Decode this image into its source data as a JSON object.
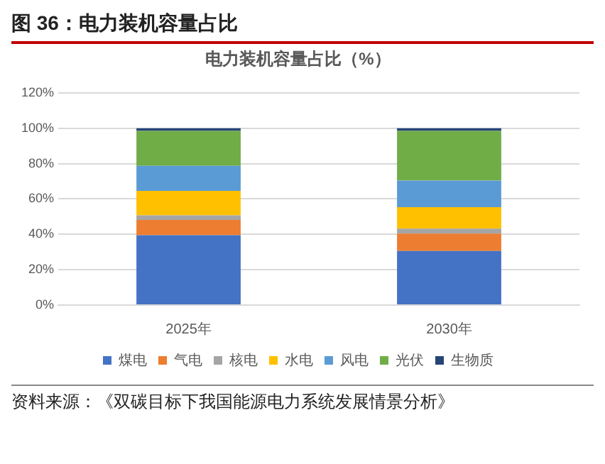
{
  "chart_data": {
    "type": "bar",
    "title": "图 36：电力装机容量占比",
    "subtitle": "电力装机容量占比（%）",
    "categories": [
      "2025年",
      "2030年"
    ],
    "stacked": true,
    "series": [
      {
        "name": "煤电",
        "color": "#4472c4",
        "values": [
          39.5,
          30.6
        ]
      },
      {
        "name": "气电",
        "color": "#ed7d31",
        "values": [
          8.6,
          9.8
        ]
      },
      {
        "name": "核电",
        "color": "#a5a5a5",
        "values": [
          2.6,
          2.8
        ]
      },
      {
        "name": "水电",
        "color": "#ffc000",
        "values": [
          13.9,
          12.1
        ]
      },
      {
        "name": "风电",
        "color": "#5b9bd5",
        "values": [
          14.1,
          15.1
        ]
      },
      {
        "name": "光伏",
        "color": "#70ad47",
        "values": [
          19.8,
          28.1
        ]
      },
      {
        "name": "生物质",
        "color": "#264478",
        "values": [
          1.5,
          1.5
        ]
      }
    ],
    "ylim": [
      0,
      120
    ],
    "yticks": [
      {
        "value": 0,
        "label": "0%"
      },
      {
        "value": 20,
        "label": "20%"
      },
      {
        "value": 40,
        "label": "40%"
      },
      {
        "value": 60,
        "label": "60%"
      },
      {
        "value": 80,
        "label": "80%"
      },
      {
        "value": 100,
        "label": "100%"
      },
      {
        "value": 120,
        "label": "120%"
      }
    ],
    "grid": "y",
    "legend": "bottom",
    "annotations": [
      "资料来源：《双碳目标下我国能源电力系统发展情景分析》"
    ]
  }
}
